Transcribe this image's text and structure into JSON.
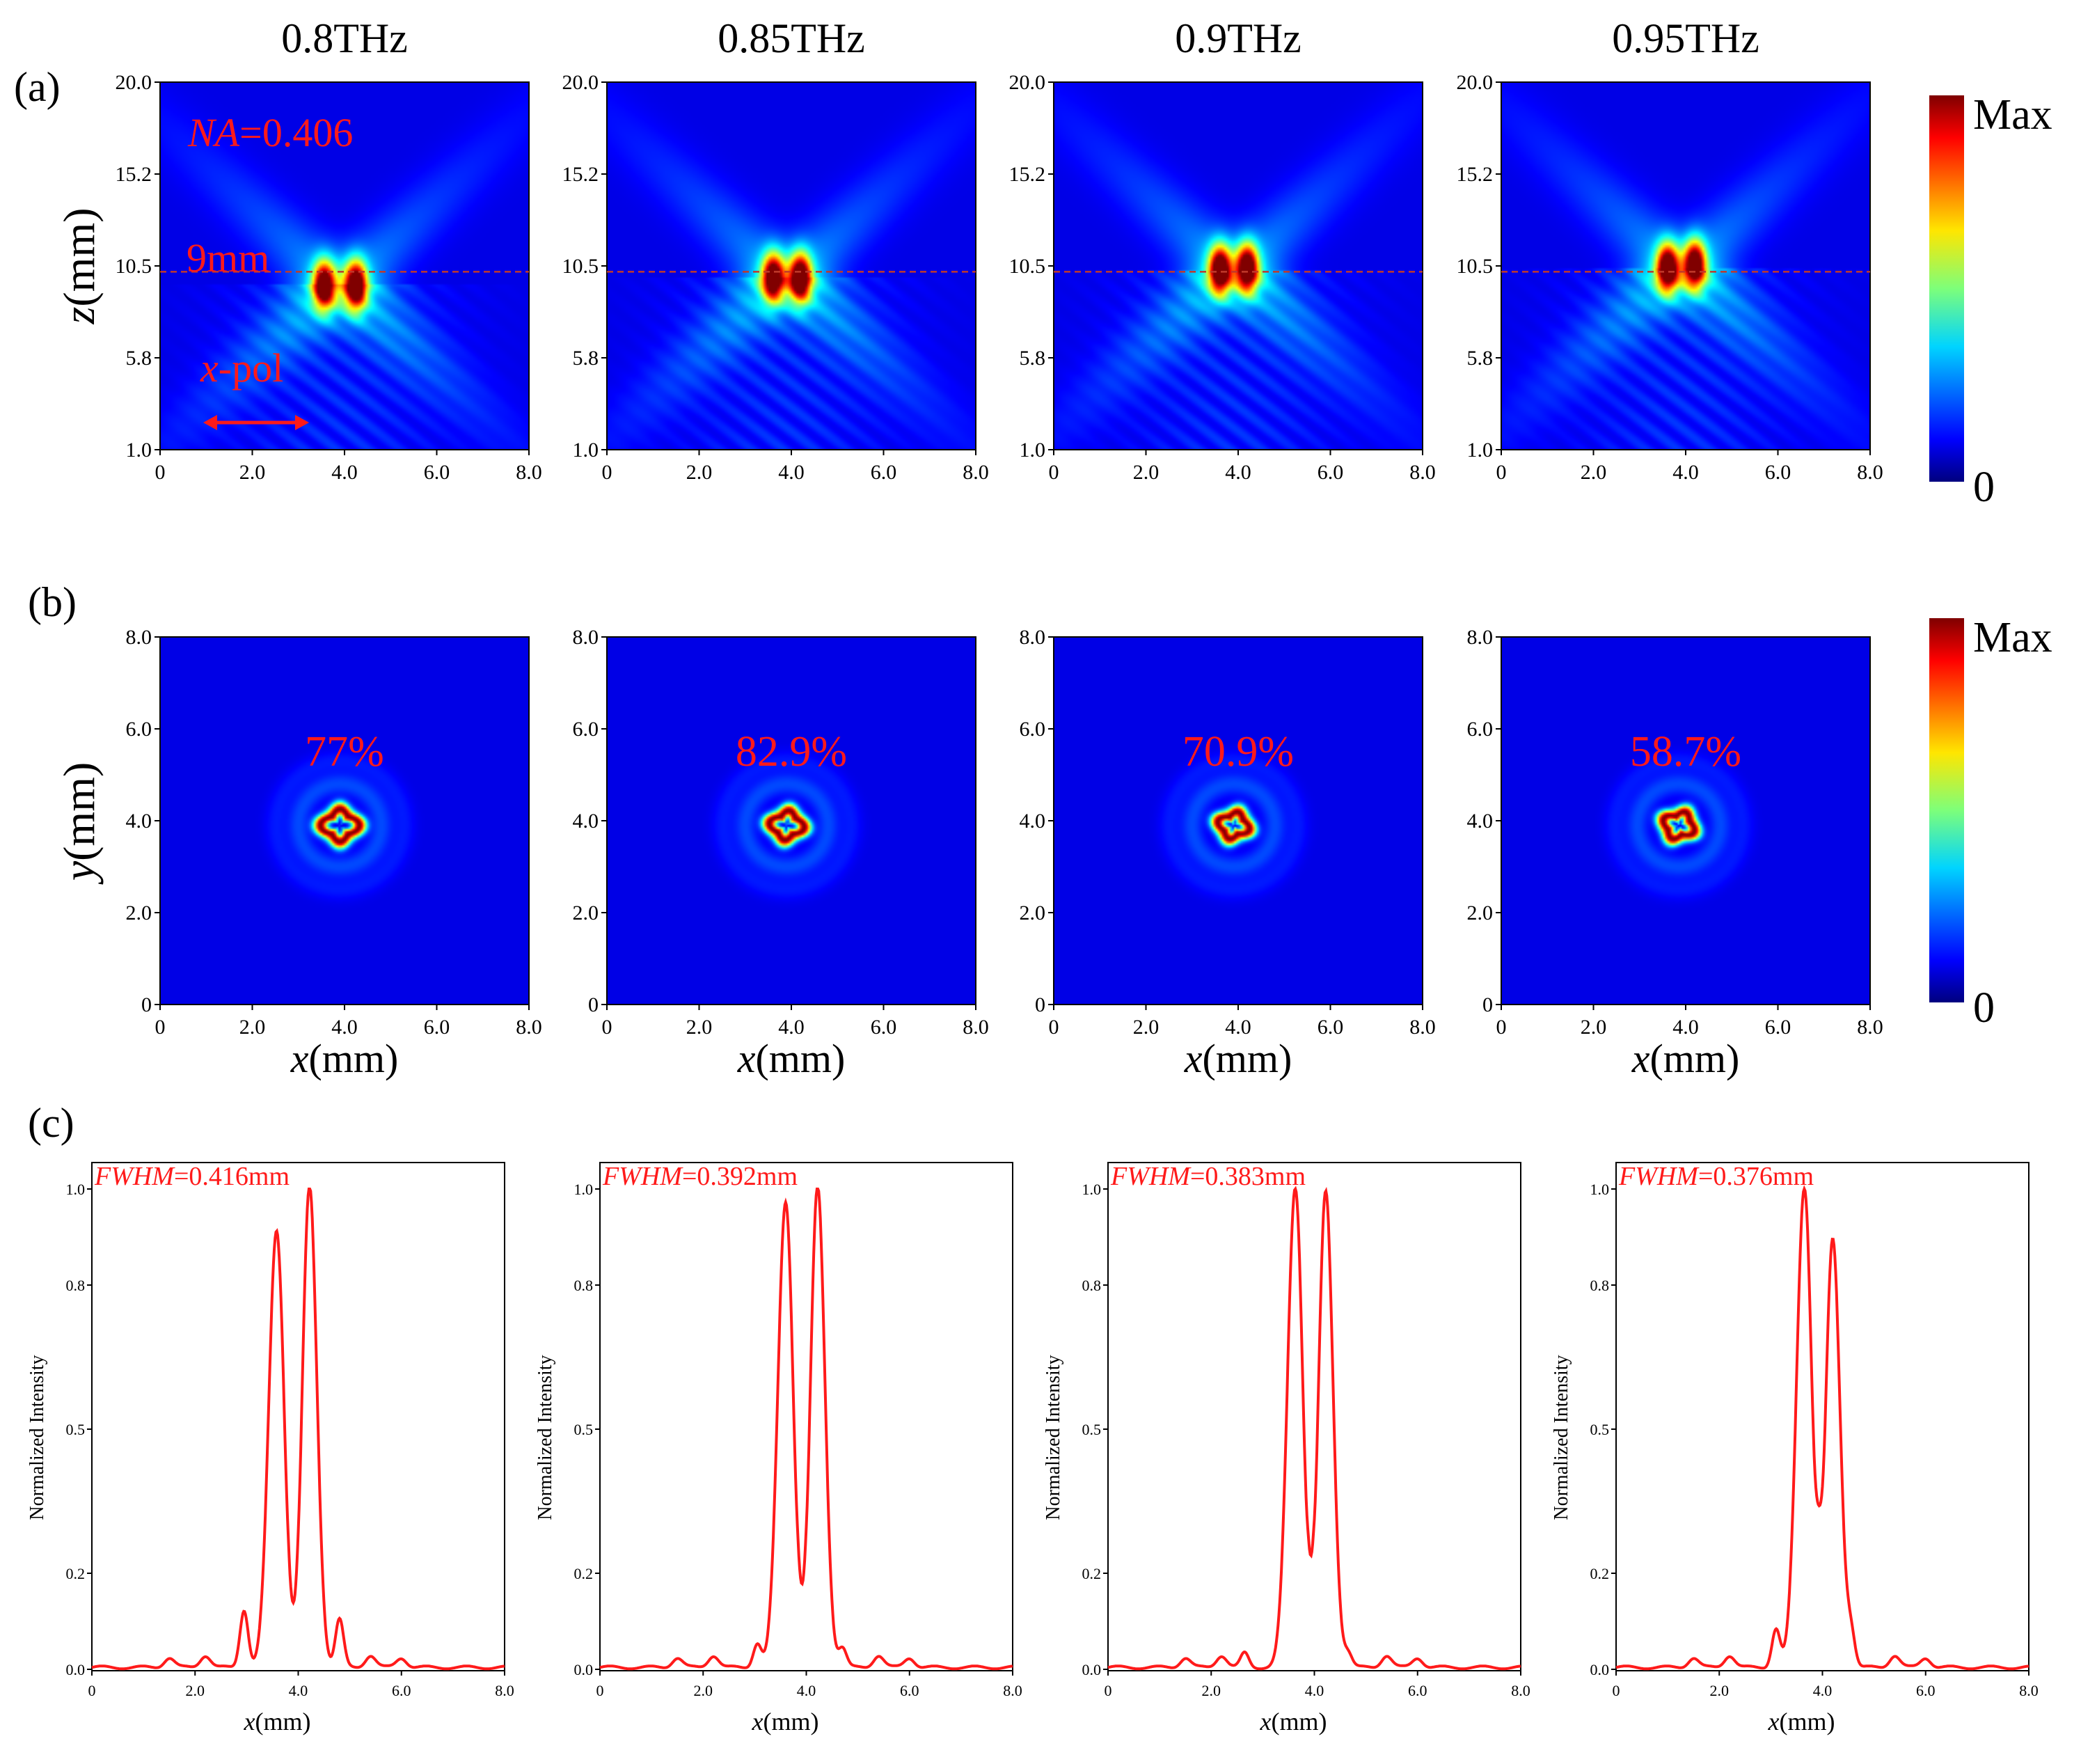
{
  "panel_labels": {
    "a": "(a)",
    "b": "(b)",
    "c": "(c)"
  },
  "frequencies": [
    "0.8THz",
    "0.85THz",
    "0.9THz",
    "0.95THz"
  ],
  "colorbar": {
    "max_label": "Max",
    "min_label": "0",
    "colormap": "jet"
  },
  "accent_color": "#ff1a1a",
  "row_a": {
    "ylabel_italic": "z",
    "ylabel_rest": "(mm)",
    "yticks": [
      "20.0",
      "15.2",
      "10.5",
      "5.8",
      "1.0"
    ],
    "xticks": [
      "0",
      "2.0",
      "4.0",
      "6.0",
      "8.0"
    ],
    "na_italic": "NA",
    "na_value": "=0.406",
    "focal_label": "9mm",
    "focal_z_mm": 9.0,
    "pol_italic": "x",
    "pol_rest": "-pol"
  },
  "row_b": {
    "ylabel_italic": "y",
    "ylabel_rest": "(mm)",
    "xlabel_italic": "x",
    "xlabel_rest": "(mm)",
    "yticks": [
      "8.0",
      "6.0",
      "4.0",
      "2.0",
      "0"
    ],
    "xticks": [
      "0",
      "2.0",
      "4.0",
      "6.0",
      "8.0"
    ],
    "efficiencies": [
      "77%",
      "82.9%",
      "70.9%",
      "58.7%"
    ]
  },
  "row_c": {
    "ylabel": "Normalized Intensity",
    "xlabel_italic": "x",
    "xlabel_rest": "(mm)",
    "yticks": [
      "1.0",
      "0.8",
      "0.5",
      "0.2",
      "0.0"
    ],
    "xticks": [
      "0",
      "2.0",
      "4.0",
      "6.0",
      "8.0"
    ],
    "fwhm_italic": "FWHM",
    "fwhm_values": [
      "=0.416mm",
      "=0.392mm",
      "=0.383mm",
      "=0.376mm"
    ]
  },
  "chart_data": [
    {
      "type": "heatmap",
      "panel": "a",
      "xlabel": "x(mm)",
      "ylabel": "z(mm)",
      "xlim": [
        0,
        8
      ],
      "ylim": [
        1,
        20
      ],
      "titles": [
        "0.8THz",
        "0.85THz",
        "0.9THz",
        "0.95THz"
      ],
      "lobes": [
        {
          "x": [
            3.55,
            4.25
          ],
          "z": [
            9.5,
            9.5
          ],
          "amp": [
            0.95,
            1.0
          ]
        },
        {
          "x": [
            3.6,
            4.2
          ],
          "z": [
            9.9,
            9.9
          ],
          "amp": [
            0.95,
            1.0
          ]
        },
        {
          "x": [
            3.6,
            4.2
          ],
          "z": [
            10.3,
            10.4
          ],
          "amp": [
            1.0,
            0.98
          ]
        },
        {
          "x": [
            3.6,
            4.2
          ],
          "z": [
            10.4,
            10.6
          ],
          "amp": [
            1.0,
            0.95
          ]
        }
      ],
      "reference_line_z": 9.0
    },
    {
      "type": "heatmap",
      "panel": "b",
      "xlabel": "x(mm)",
      "ylabel": "y(mm)",
      "xlim": [
        0,
        8
      ],
      "ylim": [
        0,
        8
      ],
      "titles": [
        "0.8THz",
        "0.85THz",
        "0.9THz",
        "0.95THz"
      ],
      "ring_center": [
        [
          3.9,
          3.9
        ],
        [
          3.9,
          3.9
        ],
        [
          3.9,
          3.9
        ],
        [
          3.85,
          3.9
        ]
      ],
      "ring_radius_mm": [
        0.33,
        0.3,
        0.28,
        0.29
      ],
      "efficiency": [
        "77%",
        "82.9%",
        "70.9%",
        "58.7%"
      ]
    },
    {
      "type": "line",
      "panel": "c",
      "xlabel": "x(mm)",
      "ylabel": "Normalized Intensity",
      "xlim": [
        0,
        8
      ],
      "ylim": [
        0,
        1.0
      ],
      "series": [
        {
          "peaks": [
            [
              3.58,
              0.91
            ],
            [
              4.22,
              1.0
            ]
          ],
          "dip": [
            3.93,
            0.2
          ],
          "shoulders": [
            [
              2.95,
              0.12
            ],
            [
              4.8,
              0.1
            ]
          ],
          "fwhm": "0.416mm"
        },
        {
          "peaks": [
            [
              3.6,
              0.97
            ],
            [
              4.22,
              1.0
            ]
          ],
          "dip": [
            3.93,
            0.23
          ],
          "shoulders": [
            [
              3.05,
              0.05
            ],
            [
              4.7,
              0.04
            ]
          ],
          "fwhm": "0.392mm"
        },
        {
          "peaks": [
            [
              3.63,
              1.0
            ],
            [
              4.22,
              0.99
            ]
          ],
          "dip": [
            3.93,
            0.26
          ],
          "shoulders": [
            [
              2.65,
              0.03
            ],
            [
              4.65,
              0.03
            ]
          ],
          "fwhm": "0.383mm"
        },
        {
          "peaks": [
            [
              3.65,
              1.0
            ],
            [
              4.2,
              0.89
            ]
          ],
          "dip": [
            3.93,
            0.36
          ],
          "shoulders": [
            [
              3.1,
              0.08
            ],
            [
              4.55,
              0.07
            ]
          ],
          "fwhm": "0.376mm"
        }
      ]
    }
  ]
}
